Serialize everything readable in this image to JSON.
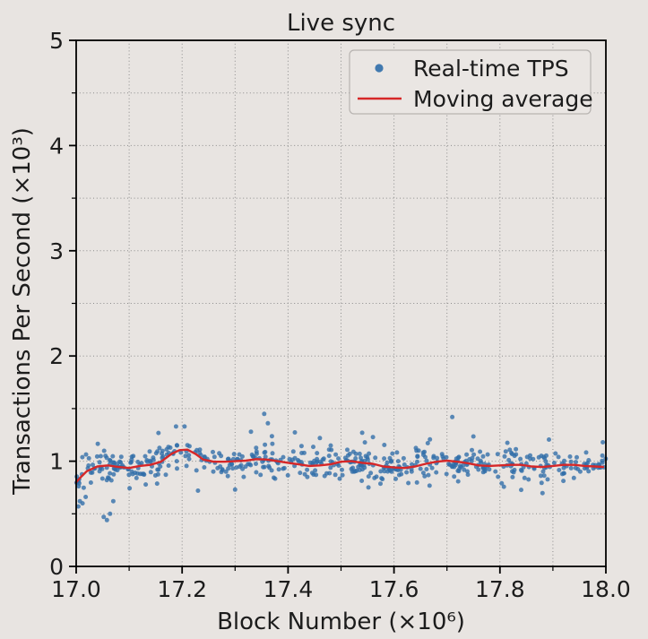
{
  "figure": {
    "background": "#e8e4e1",
    "spine_color": "#000000",
    "text_color": "#1c1c1c"
  },
  "chart_data": {
    "type": "scatter",
    "title": "Live sync",
    "xlabel": "Block Number (×10⁶)",
    "ylabel": "Transactions Per Second (×10³)",
    "xlim": [
      17.0,
      18.0
    ],
    "ylim": [
      0,
      5
    ],
    "x_tick_values": [
      17.0,
      17.2,
      17.4,
      17.6,
      17.8,
      18.0
    ],
    "x_tick_labels": [
      "17.0",
      "17.2",
      "17.4",
      "17.6",
      "17.8",
      "18.0"
    ],
    "x_minor_step": 0.1,
    "y_tick_values": [
      0,
      1,
      2,
      3,
      4,
      5
    ],
    "y_tick_labels": [
      "0",
      "1",
      "2",
      "3",
      "4",
      "5"
    ],
    "y_minor_step": 0.5,
    "grid": {
      "show": true,
      "style": "dotted",
      "x_step": 0.1,
      "y_step": 0.5,
      "color": "#8b8b8b"
    },
    "legend": {
      "position": "upper right",
      "entries": [
        {
          "label": "Real-time TPS",
          "marker": "dot",
          "color": "#2f6da8"
        },
        {
          "label": "Moving average",
          "marker": "line",
          "color": "#d62728"
        }
      ]
    },
    "series": [
      {
        "name": "Real-time TPS",
        "type": "scatter",
        "color": "#2f6da8",
        "opacity": 0.78,
        "marker_radius": 2.5,
        "summary": "~570 noisy TPS samples clustered around 0.95-1.05 (x10^3), ramping up from ~0.6 at block 17.0M, small peak ~1.1 near 17.2M",
        "generation": {
          "seed": 7,
          "count": 560,
          "sigma": 0.075,
          "tail_prob": 0.05,
          "tail_scale": 0.5,
          "clamp_y": [
            0.44,
            1.33
          ]
        },
        "explicit_points": [
          [
            17.004,
            0.57
          ],
          [
            17.007,
            0.62
          ],
          [
            17.012,
            0.6
          ],
          [
            17.018,
            0.66
          ],
          [
            17.052,
            0.47
          ],
          [
            17.058,
            0.44
          ],
          [
            17.064,
            0.5
          ],
          [
            17.07,
            0.62
          ],
          [
            17.23,
            0.72
          ],
          [
            17.3,
            0.73
          ],
          [
            17.33,
            1.28
          ],
          [
            17.355,
            1.45
          ],
          [
            17.362,
            1.36
          ],
          [
            17.46,
            1.22
          ],
          [
            17.54,
            1.27
          ],
          [
            17.71,
            1.42
          ]
        ]
      },
      {
        "name": "Moving average",
        "type": "line",
        "color": "#d62728",
        "width": 2.4,
        "points": [
          [
            17.0,
            0.8
          ],
          [
            17.01,
            0.855
          ],
          [
            17.02,
            0.905
          ],
          [
            17.04,
            0.95
          ],
          [
            17.06,
            0.96
          ],
          [
            17.08,
            0.945
          ],
          [
            17.1,
            0.935
          ],
          [
            17.12,
            0.955
          ],
          [
            17.14,
            0.965
          ],
          [
            17.16,
            0.995
          ],
          [
            17.18,
            1.07
          ],
          [
            17.195,
            1.105
          ],
          [
            17.21,
            1.11
          ],
          [
            17.225,
            1.07
          ],
          [
            17.24,
            1.015
          ],
          [
            17.26,
            0.995
          ],
          [
            17.28,
            0.995
          ],
          [
            17.3,
            1.0
          ],
          [
            17.32,
            1.005
          ],
          [
            17.34,
            1.02
          ],
          [
            17.36,
            1.015
          ],
          [
            17.38,
            1.0
          ],
          [
            17.4,
            0.985
          ],
          [
            17.42,
            0.97
          ],
          [
            17.44,
            0.955
          ],
          [
            17.46,
            0.96
          ],
          [
            17.48,
            0.97
          ],
          [
            17.5,
            0.995
          ],
          [
            17.52,
            1.0
          ],
          [
            17.54,
            0.985
          ],
          [
            17.56,
            0.975
          ],
          [
            17.58,
            0.95
          ],
          [
            17.6,
            0.94
          ],
          [
            17.62,
            0.935
          ],
          [
            17.64,
            0.95
          ],
          [
            17.66,
            0.975
          ],
          [
            17.68,
            0.995
          ],
          [
            17.7,
            1.005
          ],
          [
            17.72,
            0.995
          ],
          [
            17.74,
            0.98
          ],
          [
            17.76,
            0.96
          ],
          [
            17.78,
            0.955
          ],
          [
            17.8,
            0.96
          ],
          [
            17.82,
            0.965
          ],
          [
            17.84,
            0.965
          ],
          [
            17.86,
            0.95
          ],
          [
            17.88,
            0.945
          ],
          [
            17.9,
            0.955
          ],
          [
            17.92,
            0.965
          ],
          [
            17.94,
            0.965
          ],
          [
            17.96,
            0.955
          ],
          [
            17.98,
            0.95
          ],
          [
            17.995,
            0.945
          ]
        ]
      }
    ]
  }
}
